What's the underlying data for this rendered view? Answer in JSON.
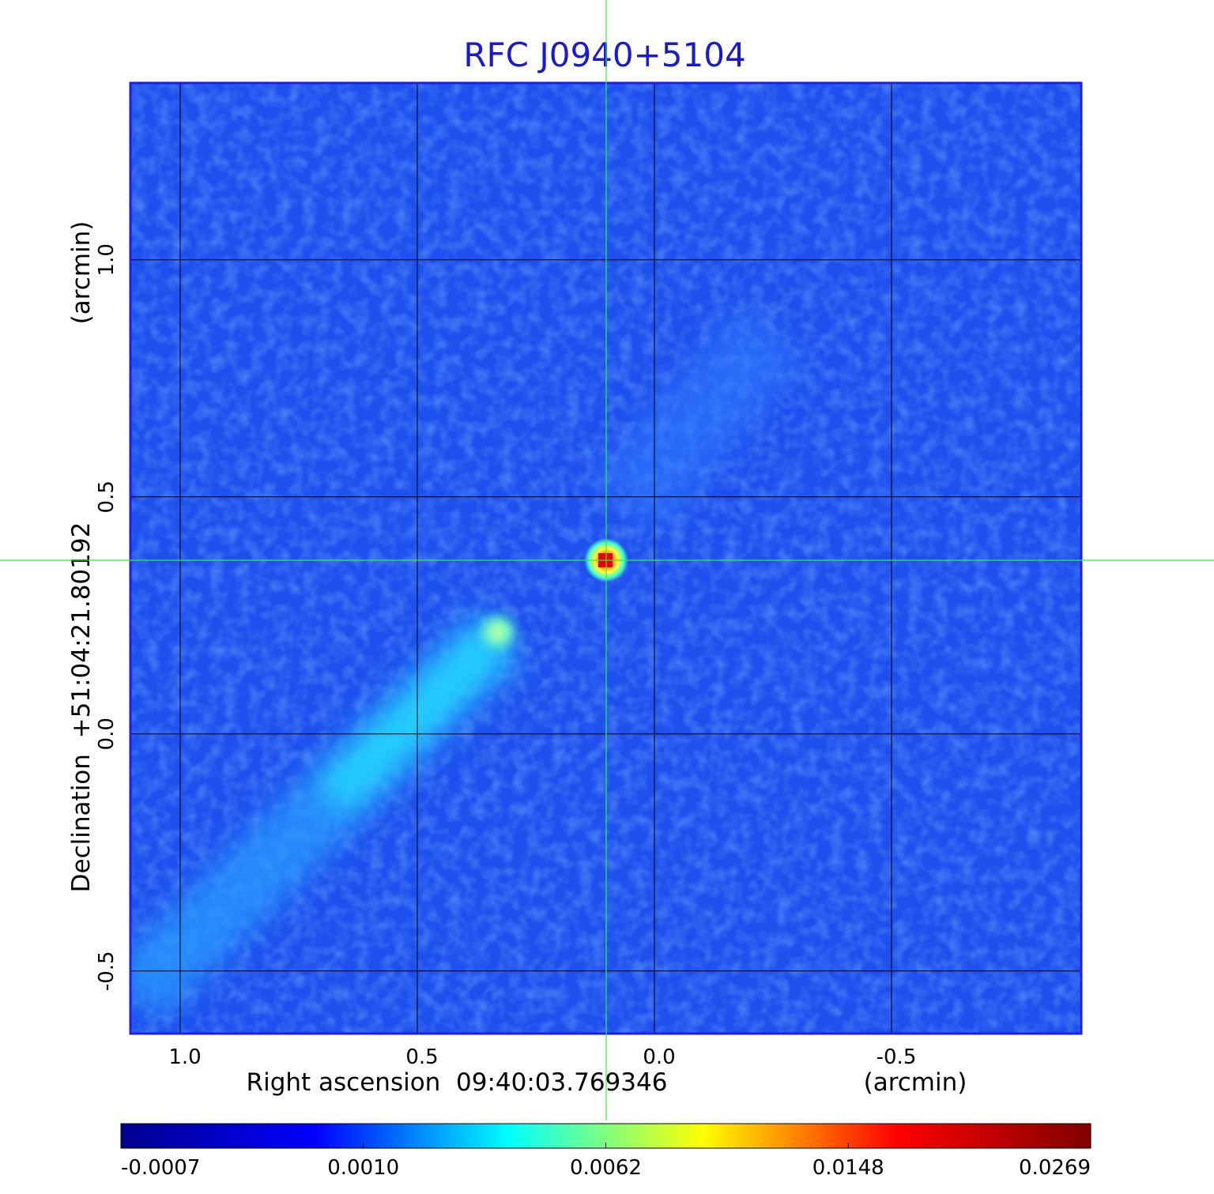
{
  "chart_data": {
    "type": "image",
    "title": "RFC J0940+5104",
    "xlabel": "Right ascension  09:40:03.769346",
    "xunit": "(arcmin)",
    "ylabel": "Declination  +51:04:21.80192",
    "yunit": "(arcmin)",
    "xlim": [
      1.105,
      -0.9
    ],
    "ylim": [
      -0.632,
      1.373
    ],
    "xticks": [
      {
        "value": 1.0,
        "label": "1.0"
      },
      0.5,
      {
        "value": 0.0,
        "label": "0.0"
      },
      -0.5
    ],
    "yticks": [
      -0.5,
      {
        "value": 0.0,
        "label": "0.0"
      },
      0.5,
      {
        "value": 1.0,
        "label": "1.0"
      }
    ],
    "grid": true,
    "colorbar_ticks": [
      -0.0007,
      {
        "value": 0.001,
        "label": "0.0010"
      },
      0.0062,
      0.0148,
      0.0269
    ],
    "colormap": [
      "#00008f",
      "#0000ff",
      "#00ffff",
      "#ffff00",
      "#ff0000",
      "#800000"
    ]
  }
}
